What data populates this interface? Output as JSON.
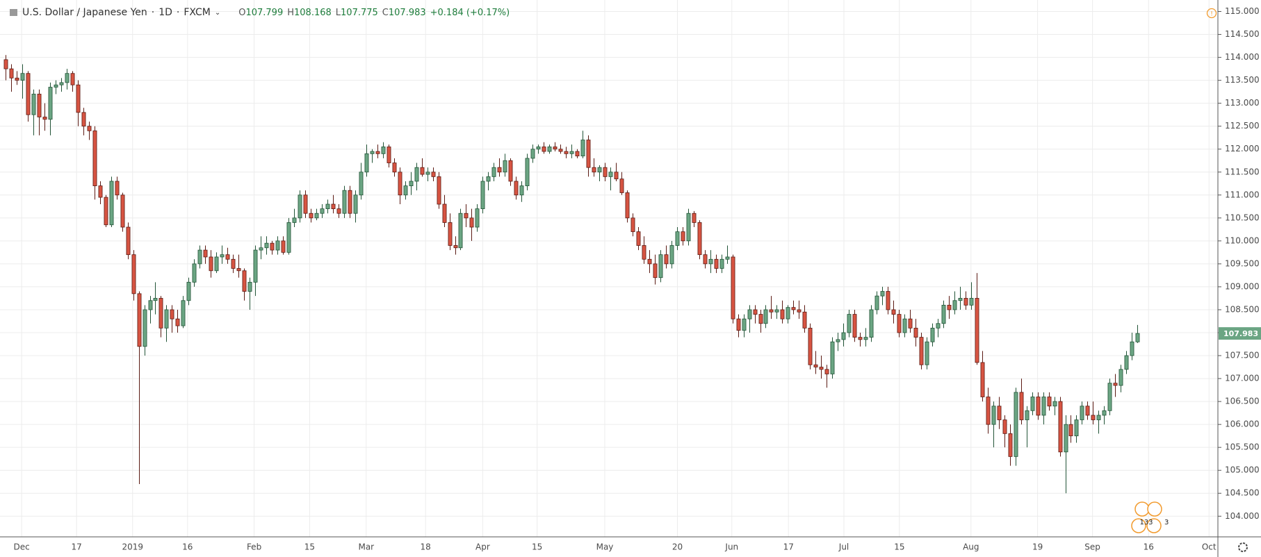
{
  "chart_data": {
    "type": "candlestick",
    "title": "U.S. Dollar / Japanese Yen",
    "interval": "1D",
    "source": "FXCM",
    "legend": {
      "open_label": "O",
      "high_label": "H",
      "low_label": "L",
      "close_label": "C",
      "change": "+0.184 (+0.17%)"
    },
    "events": [
      "133",
      "3"
    ],
    "up_color": "#6ba583",
    "up_border": "#225437",
    "down_color": "#d75442",
    "down_border": "#5b1a13",
    "grid": true,
    "xlim": [
      -1.0,
      218.5
    ],
    "ylim": [
      103.55,
      115.25
    ],
    "xticks": [
      {
        "value": 2.9,
        "label": "Dec"
      },
      {
        "value": 12.8,
        "label": "17"
      },
      {
        "value": 22.9,
        "label": "2019"
      },
      {
        "value": 32.8,
        "label": "16"
      },
      {
        "value": 44.8,
        "label": "Feb"
      },
      {
        "value": 54.8,
        "label": "15"
      },
      {
        "value": 65,
        "label": "Mar"
      },
      {
        "value": 75.7,
        "label": "18"
      },
      {
        "value": 86,
        "label": "Apr"
      },
      {
        "value": 95.8,
        "label": "15"
      },
      {
        "value": 108,
        "label": "May"
      },
      {
        "value": 121.1,
        "label": "20"
      },
      {
        "value": 130.9,
        "label": "Jun"
      },
      {
        "value": 141.1,
        "label": "17"
      },
      {
        "value": 151.1,
        "label": "Jul"
      },
      {
        "value": 161.1,
        "label": "15"
      },
      {
        "value": 174,
        "label": "Aug"
      },
      {
        "value": 186,
        "label": "19"
      },
      {
        "value": 195.9,
        "label": "Sep"
      },
      {
        "value": 206,
        "label": "16"
      },
      {
        "value": 216.9,
        "label": "Oct"
      }
    ],
    "yticks": [
      {
        "value": 104,
        "label": "104.000"
      },
      {
        "value": 104.5,
        "label": "104.500"
      },
      {
        "value": 105,
        "label": "105.000"
      },
      {
        "value": 105.5,
        "label": "105.500"
      },
      {
        "value": 106,
        "label": "106.000"
      },
      {
        "value": 106.5,
        "label": "106.500"
      },
      {
        "value": 107,
        "label": "107.000"
      },
      {
        "value": 107.5,
        "label": "107.500"
      },
      {
        "value": 108,
        "label": "108.000"
      },
      {
        "value": 108.5,
        "label": "108.500"
      },
      {
        "value": 109,
        "label": "109.000"
      },
      {
        "value": 109.5,
        "label": "109.500"
      },
      {
        "value": 110,
        "label": "110.000"
      },
      {
        "value": 110.5,
        "label": "110.500"
      },
      {
        "value": 111,
        "label": "111.000"
      },
      {
        "value": 111.5,
        "label": "111.500"
      },
      {
        "value": 112,
        "label": "112.000"
      },
      {
        "value": 112.5,
        "label": "112.500"
      },
      {
        "value": 113,
        "label": "113.000"
      },
      {
        "value": 113.5,
        "label": "113.500"
      },
      {
        "value": 114,
        "label": "114.000"
      },
      {
        "value": 114.5,
        "label": "114.500"
      },
      {
        "value": 115,
        "label": "115.000"
      }
    ],
    "ohlc": [
      [
        113.95,
        114.05,
        113.5,
        113.75
      ],
      [
        113.75,
        113.85,
        113.25,
        113.55
      ],
      [
        113.55,
        113.7,
        113.4,
        113.5
      ],
      [
        113.5,
        113.85,
        113.1,
        113.65
      ],
      [
        113.65,
        113.7,
        112.6,
        112.75
      ],
      [
        112.75,
        113.3,
        112.3,
        113.2
      ],
      [
        113.2,
        113.3,
        112.3,
        112.7
      ],
      [
        112.7,
        113.0,
        112.4,
        112.65
      ],
      [
        112.65,
        113.45,
        112.3,
        113.35
      ],
      [
        113.35,
        113.5,
        113.2,
        113.4
      ],
      [
        113.4,
        113.55,
        113.25,
        113.45
      ],
      [
        113.45,
        113.75,
        113.3,
        113.65
      ],
      [
        113.65,
        113.7,
        113.25,
        113.4
      ],
      [
        113.4,
        113.5,
        112.5,
        112.8
      ],
      [
        112.8,
        112.9,
        112.3,
        112.5
      ],
      [
        112.5,
        112.6,
        112.2,
        112.4
      ],
      [
        112.4,
        112.5,
        110.9,
        111.2
      ],
      [
        111.2,
        111.3,
        110.8,
        110.95
      ],
      [
        110.95,
        111.0,
        110.3,
        110.35
      ],
      [
        110.35,
        111.4,
        110.3,
        111.3
      ],
      [
        111.3,
        111.4,
        110.9,
        111.0
      ],
      [
        111.0,
        111.05,
        110.2,
        110.3
      ],
      [
        110.3,
        110.4,
        109.6,
        109.7
      ],
      [
        109.7,
        109.8,
        108.7,
        108.85
      ],
      [
        108.85,
        108.9,
        104.7,
        107.7
      ],
      [
        107.7,
        108.6,
        107.5,
        108.5
      ],
      [
        108.5,
        108.8,
        108.2,
        108.7
      ],
      [
        108.7,
        109.1,
        108.4,
        108.75
      ],
      [
        108.75,
        108.8,
        107.9,
        108.1
      ],
      [
        108.1,
        108.6,
        107.8,
        108.5
      ],
      [
        108.5,
        108.6,
        108.0,
        108.3
      ],
      [
        108.3,
        108.5,
        108.0,
        108.15
      ],
      [
        108.15,
        108.8,
        108.1,
        108.7
      ],
      [
        108.7,
        109.2,
        108.6,
        109.1
      ],
      [
        109.1,
        109.6,
        109.0,
        109.5
      ],
      [
        109.5,
        109.9,
        109.4,
        109.8
      ],
      [
        109.8,
        109.9,
        109.5,
        109.65
      ],
      [
        109.65,
        109.8,
        109.2,
        109.35
      ],
      [
        109.35,
        109.75,
        109.3,
        109.65
      ],
      [
        109.65,
        109.9,
        109.5,
        109.7
      ],
      [
        109.7,
        109.85,
        109.5,
        109.6
      ],
      [
        109.6,
        109.7,
        109.3,
        109.4
      ],
      [
        109.4,
        109.7,
        109.2,
        109.35
      ],
      [
        109.35,
        109.4,
        108.7,
        108.9
      ],
      [
        108.9,
        109.2,
        108.5,
        109.1
      ],
      [
        109.1,
        109.9,
        108.8,
        109.8
      ],
      [
        109.8,
        110.1,
        109.6,
        109.85
      ],
      [
        109.85,
        110.1,
        109.7,
        109.95
      ],
      [
        109.95,
        110.0,
        109.7,
        109.8
      ],
      [
        109.8,
        110.1,
        109.7,
        110.0
      ],
      [
        110.0,
        110.1,
        109.7,
        109.75
      ],
      [
        109.75,
        110.5,
        109.7,
        110.4
      ],
      [
        110.4,
        110.7,
        110.3,
        110.5
      ],
      [
        110.5,
        111.1,
        110.4,
        111.0
      ],
      [
        111.0,
        111.1,
        110.5,
        110.6
      ],
      [
        110.6,
        110.7,
        110.4,
        110.5
      ],
      [
        110.5,
        110.7,
        110.45,
        110.6
      ],
      [
        110.6,
        110.8,
        110.5,
        110.7
      ],
      [
        110.7,
        110.9,
        110.6,
        110.8
      ],
      [
        110.8,
        111.0,
        110.6,
        110.7
      ],
      [
        110.7,
        110.8,
        110.5,
        110.6
      ],
      [
        110.6,
        111.2,
        110.5,
        111.1
      ],
      [
        111.1,
        111.2,
        110.5,
        110.6
      ],
      [
        110.6,
        111.1,
        110.4,
        111.0
      ],
      [
        111.0,
        111.7,
        110.9,
        111.5
      ],
      [
        111.5,
        112.1,
        111.4,
        111.9
      ],
      [
        111.9,
        112.0,
        111.7,
        111.95
      ],
      [
        111.95,
        112.1,
        111.8,
        111.9
      ],
      [
        111.9,
        112.15,
        111.8,
        112.05
      ],
      [
        112.05,
        112.1,
        111.6,
        111.7
      ],
      [
        111.7,
        111.8,
        111.4,
        111.5
      ],
      [
        111.5,
        111.6,
        110.8,
        111.0
      ],
      [
        111.0,
        111.3,
        110.9,
        111.2
      ],
      [
        111.2,
        111.5,
        111.0,
        111.3
      ],
      [
        111.3,
        111.7,
        111.1,
        111.6
      ],
      [
        111.6,
        111.8,
        111.4,
        111.45
      ],
      [
        111.45,
        111.6,
        111.3,
        111.5
      ],
      [
        111.5,
        111.6,
        111.3,
        111.4
      ],
      [
        111.4,
        111.5,
        110.7,
        110.8
      ],
      [
        110.8,
        111.0,
        110.3,
        110.4
      ],
      [
        110.4,
        110.6,
        109.8,
        109.9
      ],
      [
        109.9,
        110.1,
        109.7,
        109.85
      ],
      [
        109.85,
        110.7,
        109.8,
        110.6
      ],
      [
        110.6,
        110.8,
        110.3,
        110.5
      ],
      [
        110.5,
        110.7,
        110.0,
        110.3
      ],
      [
        110.3,
        110.8,
        110.2,
        110.7
      ],
      [
        110.7,
        111.4,
        110.6,
        111.3
      ],
      [
        111.3,
        111.5,
        111.1,
        111.4
      ],
      [
        111.4,
        111.7,
        111.3,
        111.6
      ],
      [
        111.6,
        111.8,
        111.4,
        111.5
      ],
      [
        111.5,
        111.9,
        111.4,
        111.75
      ],
      [
        111.75,
        111.8,
        111.2,
        111.3
      ],
      [
        111.3,
        111.4,
        110.9,
        111.0
      ],
      [
        111.0,
        111.3,
        110.85,
        111.2
      ],
      [
        111.2,
        111.9,
        111.1,
        111.8
      ],
      [
        111.8,
        112.1,
        111.7,
        112.0
      ],
      [
        112.0,
        112.1,
        111.9,
        112.05
      ],
      [
        112.05,
        112.15,
        111.9,
        111.95
      ],
      [
        111.95,
        112.1,
        111.9,
        112.05
      ],
      [
        112.05,
        112.15,
        111.95,
        112.0
      ],
      [
        112.0,
        112.1,
        111.9,
        111.95
      ],
      [
        111.95,
        112.05,
        111.8,
        111.9
      ],
      [
        111.9,
        112.1,
        111.8,
        111.95
      ],
      [
        111.95,
        112.0,
        111.8,
        111.85
      ],
      [
        111.85,
        112.4,
        111.8,
        112.2
      ],
      [
        112.2,
        112.3,
        111.4,
        111.6
      ],
      [
        111.6,
        111.8,
        111.4,
        111.5
      ],
      [
        111.5,
        111.65,
        111.3,
        111.6
      ],
      [
        111.6,
        111.7,
        111.3,
        111.4
      ],
      [
        111.4,
        111.6,
        111.1,
        111.5
      ],
      [
        111.5,
        111.7,
        111.3,
        111.35
      ],
      [
        111.35,
        111.5,
        111.0,
        111.05
      ],
      [
        111.05,
        111.1,
        110.4,
        110.5
      ],
      [
        110.5,
        110.6,
        110.1,
        110.2
      ],
      [
        110.2,
        110.3,
        109.8,
        109.9
      ],
      [
        109.9,
        110.1,
        109.5,
        109.6
      ],
      [
        109.6,
        109.8,
        109.3,
        109.5
      ],
      [
        109.5,
        109.7,
        109.05,
        109.2
      ],
      [
        109.2,
        109.8,
        109.1,
        109.7
      ],
      [
        109.7,
        109.9,
        109.4,
        109.5
      ],
      [
        109.5,
        110.0,
        109.4,
        109.9
      ],
      [
        109.9,
        110.3,
        109.8,
        110.2
      ],
      [
        110.2,
        110.3,
        109.9,
        110.0
      ],
      [
        110.0,
        110.7,
        109.9,
        110.6
      ],
      [
        110.6,
        110.65,
        110.3,
        110.4
      ],
      [
        110.4,
        110.45,
        109.6,
        109.7
      ],
      [
        109.7,
        109.8,
        109.4,
        109.5
      ],
      [
        109.5,
        109.8,
        109.3,
        109.6
      ],
      [
        109.6,
        109.7,
        109.3,
        109.4
      ],
      [
        109.4,
        109.7,
        109.3,
        109.6
      ],
      [
        109.6,
        109.9,
        109.5,
        109.65
      ],
      [
        109.65,
        109.7,
        108.2,
        108.3
      ],
      [
        108.3,
        108.4,
        107.9,
        108.05
      ],
      [
        108.05,
        108.4,
        107.9,
        108.3
      ],
      [
        108.3,
        108.6,
        108.0,
        108.5
      ],
      [
        108.5,
        108.6,
        108.2,
        108.4
      ],
      [
        108.4,
        108.5,
        108.0,
        108.2
      ],
      [
        108.2,
        108.6,
        108.1,
        108.5
      ],
      [
        108.5,
        108.8,
        108.3,
        108.45
      ],
      [
        108.45,
        108.6,
        108.3,
        108.5
      ],
      [
        108.5,
        108.7,
        108.2,
        108.3
      ],
      [
        108.3,
        108.6,
        108.2,
        108.55
      ],
      [
        108.55,
        108.7,
        108.4,
        108.5
      ],
      [
        108.5,
        108.7,
        108.3,
        108.45
      ],
      [
        108.45,
        108.6,
        108.0,
        108.1
      ],
      [
        108.1,
        108.2,
        107.2,
        107.3
      ],
      [
        107.3,
        107.6,
        107.1,
        107.25
      ],
      [
        107.25,
        107.5,
        107.0,
        107.2
      ],
      [
        107.2,
        107.3,
        106.8,
        107.1
      ],
      [
        107.1,
        107.9,
        107.0,
        107.8
      ],
      [
        107.8,
        108.0,
        107.6,
        107.85
      ],
      [
        107.85,
        108.2,
        107.7,
        108.0
      ],
      [
        108.0,
        108.5,
        107.9,
        108.4
      ],
      [
        108.4,
        108.5,
        107.8,
        107.9
      ],
      [
        107.9,
        108.0,
        107.7,
        107.85
      ],
      [
        107.85,
        108.1,
        107.7,
        107.9
      ],
      [
        107.9,
        108.6,
        107.8,
        108.5
      ],
      [
        108.5,
        108.9,
        108.4,
        108.8
      ],
      [
        108.8,
        109.0,
        108.6,
        108.9
      ],
      [
        108.9,
        109.0,
        108.4,
        108.5
      ],
      [
        108.5,
        108.7,
        108.2,
        108.4
      ],
      [
        108.4,
        108.5,
        107.9,
        108.0
      ],
      [
        108.0,
        108.4,
        107.9,
        108.3
      ],
      [
        108.3,
        108.5,
        108.0,
        108.1
      ],
      [
        108.1,
        108.3,
        107.7,
        107.9
      ],
      [
        107.9,
        108.0,
        107.2,
        107.3
      ],
      [
        107.3,
        107.9,
        107.2,
        107.8
      ],
      [
        107.8,
        108.2,
        107.7,
        108.1
      ],
      [
        108.1,
        108.3,
        107.9,
        108.2
      ],
      [
        108.2,
        108.7,
        108.1,
        108.6
      ],
      [
        108.6,
        108.8,
        108.3,
        108.5
      ],
      [
        108.5,
        108.9,
        108.4,
        108.7
      ],
      [
        108.7,
        109.0,
        108.5,
        108.75
      ],
      [
        108.75,
        108.9,
        108.5,
        108.6
      ],
      [
        108.6,
        109.1,
        108.5,
        108.75
      ],
      [
        108.75,
        109.3,
        107.3,
        107.35
      ],
      [
        107.35,
        107.6,
        106.5,
        106.6
      ],
      [
        106.6,
        106.8,
        105.8,
        106.0
      ],
      [
        106.0,
        106.5,
        105.5,
        106.4
      ],
      [
        106.4,
        106.6,
        105.9,
        106.1
      ],
      [
        106.1,
        106.2,
        105.5,
        105.8
      ],
      [
        105.8,
        106.0,
        105.1,
        105.3
      ],
      [
        105.3,
        106.8,
        105.1,
        106.7
      ],
      [
        106.7,
        107.0,
        106.0,
        106.1
      ],
      [
        106.1,
        106.4,
        105.5,
        106.3
      ],
      [
        106.3,
        106.7,
        106.2,
        106.6
      ],
      [
        106.6,
        106.7,
        106.1,
        106.2
      ],
      [
        106.2,
        106.7,
        106.0,
        106.6
      ],
      [
        106.6,
        106.7,
        106.3,
        106.4
      ],
      [
        106.4,
        106.6,
        106.2,
        106.5
      ],
      [
        106.5,
        106.6,
        105.3,
        105.4
      ],
      [
        105.4,
        106.2,
        104.5,
        106.0
      ],
      [
        106.0,
        106.2,
        105.6,
        105.75
      ],
      [
        105.75,
        106.2,
        105.6,
        106.1
      ],
      [
        106.1,
        106.5,
        106.0,
        106.4
      ],
      [
        106.4,
        106.5,
        106.1,
        106.2
      ],
      [
        106.2,
        106.5,
        106.0,
        106.1
      ],
      [
        106.1,
        106.3,
        105.8,
        106.2
      ],
      [
        106.2,
        106.4,
        106.0,
        106.3
      ],
      [
        106.3,
        107.0,
        106.2,
        106.9
      ],
      [
        106.9,
        107.1,
        106.6,
        106.85
      ],
      [
        106.85,
        107.3,
        106.7,
        107.2
      ],
      [
        107.2,
        107.6,
        107.1,
        107.5
      ],
      [
        107.5,
        108.0,
        107.4,
        107.8
      ],
      [
        107.799,
        108.168,
        107.775,
        107.983
      ]
    ]
  }
}
